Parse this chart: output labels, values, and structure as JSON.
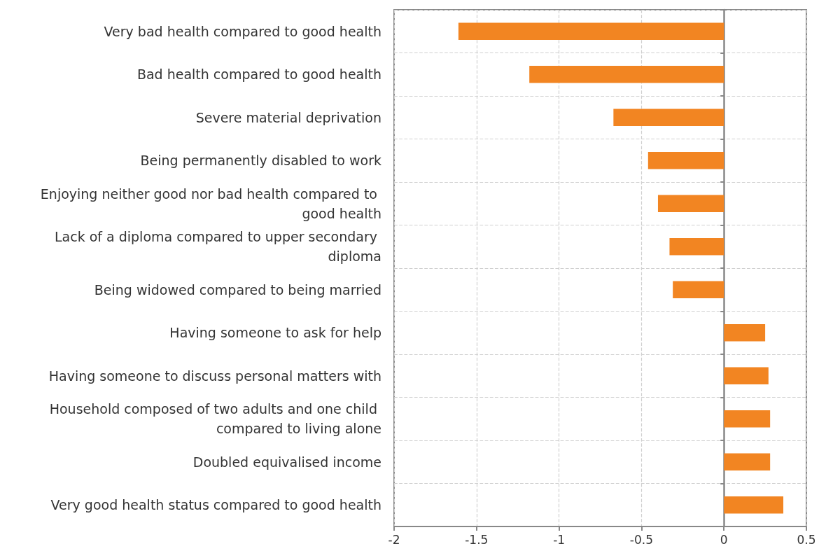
{
  "chart_data": {
    "type": "bar",
    "orientation": "horizontal",
    "categories": [
      "Very bad health compared to good health",
      "Bad health compared to good health",
      "Severe material deprivation",
      "Being permanently disabled to work",
      "Enjoying neither good nor bad health compared to good health",
      "Lack of a diploma compared to upper secondary diploma",
      "Being widowed compared to being married",
      "Having someone to ask for help",
      "Having someone to discuss personal matters with",
      "Household composed of two adults and one child compared to living alone",
      "Doubled equivalised income",
      "Very good health status compared to good health"
    ],
    "values": [
      -1.61,
      -1.18,
      -0.67,
      -0.46,
      -0.4,
      -0.33,
      -0.31,
      0.25,
      0.27,
      0.28,
      0.28,
      0.36
    ],
    "color": "#f28522",
    "xlim": [
      -2,
      0.5
    ],
    "xticks": [
      -2,
      -1.5,
      -1,
      -0.5,
      0,
      0.5
    ],
    "grid": true
  }
}
